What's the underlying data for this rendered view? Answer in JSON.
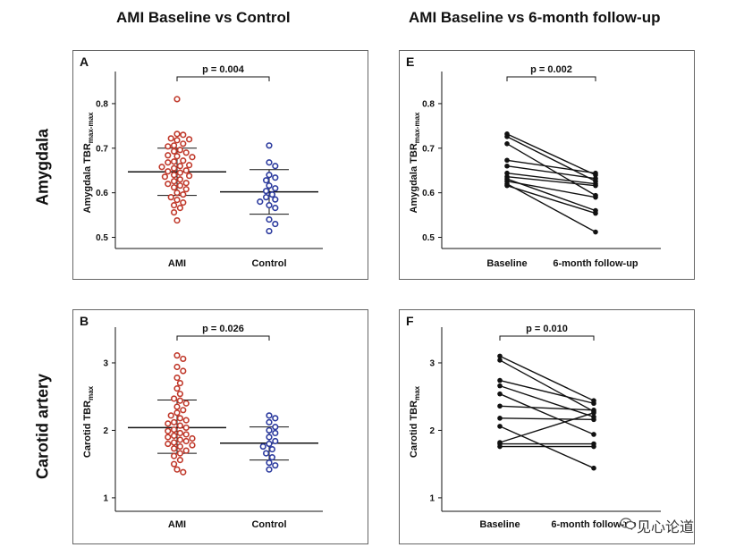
{
  "titles": {
    "col_left": "AMI  Baseline vs Control",
    "col_right": "AMI Baseline vs 6-month follow-up",
    "row_top": "Amygdala",
    "row_bottom": "Carotid artery"
  },
  "watermark": {
    "text": "见心论道",
    "icon": "wechat-icon"
  },
  "colors": {
    "ami": "#c0392b",
    "control": "#2b3a9e",
    "line": "#111111",
    "frame": "#666666"
  },
  "chart_data": [
    {
      "id": "A",
      "type": "scatter",
      "letter": "A",
      "ylabel_main": "Amygdala TBR",
      "ylabel_sub": "max-max",
      "ylim": [
        0.475,
        0.86
      ],
      "yticks": [
        0.5,
        0.6,
        0.7,
        0.8
      ],
      "yticklabels": [
        "0.5",
        "0.6",
        "0.7",
        "0.8"
      ],
      "categories": [
        "AMI",
        "Control"
      ],
      "p_value": "p = 0.004",
      "series": [
        {
          "category": "AMI",
          "color": "#c0392b",
          "mean": 0.647,
          "sd_upper": 0.7,
          "sd_lower": 0.594,
          "values": [
            0.81,
            0.732,
            0.73,
            0.72,
            0.722,
            0.718,
            0.71,
            0.706,
            0.704,
            0.696,
            0.693,
            0.69,
            0.684,
            0.682,
            0.68,
            0.672,
            0.67,
            0.668,
            0.662,
            0.66,
            0.658,
            0.655,
            0.65,
            0.648,
            0.645,
            0.64,
            0.638,
            0.636,
            0.63,
            0.626,
            0.622,
            0.62,
            0.616,
            0.612,
            0.608,
            0.6,
            0.596,
            0.59,
            0.584,
            0.578,
            0.572,
            0.566,
            0.556,
            0.538
          ]
        },
        {
          "category": "Control",
          "color": "#2b3a9e",
          "mean": 0.602,
          "sd_upper": 0.652,
          "sd_lower": 0.552,
          "values": [
            0.706,
            0.668,
            0.66,
            0.64,
            0.634,
            0.628,
            0.616,
            0.61,
            0.604,
            0.596,
            0.59,
            0.585,
            0.58,
            0.572,
            0.566,
            0.54,
            0.53,
            0.514
          ]
        }
      ]
    },
    {
      "id": "E",
      "type": "line",
      "letter": "E",
      "ylabel_main": "Amygdala TBR",
      "ylabel_sub": "max-max",
      "ylim": [
        0.475,
        0.86
      ],
      "yticks": [
        0.5,
        0.6,
        0.7,
        0.8
      ],
      "yticklabels": [
        "0.5",
        "0.6",
        "0.7",
        "0.8"
      ],
      "categories": [
        "Baseline",
        "6-month follow-up"
      ],
      "p_value": "p = 0.002",
      "pairs": [
        [
          0.732,
          0.64
        ],
        [
          0.726,
          0.626
        ],
        [
          0.71,
          0.594
        ],
        [
          0.673,
          0.644
        ],
        [
          0.66,
          0.632
        ],
        [
          0.644,
          0.62
        ],
        [
          0.636,
          0.616
        ],
        [
          0.631,
          0.56
        ],
        [
          0.626,
          0.59
        ],
        [
          0.62,
          0.512
        ],
        [
          0.616,
          0.554
        ]
      ]
    },
    {
      "id": "B",
      "type": "scatter",
      "letter": "B",
      "ylabel_main": "Carotid TBR",
      "ylabel_sub": "max",
      "ylim": [
        0.8,
        3.45
      ],
      "yticks": [
        1,
        2,
        3
      ],
      "yticklabels": [
        "1",
        "2",
        "3"
      ],
      "categories": [
        "AMI",
        "Control"
      ],
      "p_value": "p = 0.026",
      "series": [
        {
          "category": "AMI",
          "color": "#c0392b",
          "mean": 2.04,
          "sd_upper": 2.45,
          "sd_lower": 1.66,
          "values": [
            3.11,
            3.06,
            2.94,
            2.88,
            2.78,
            2.7,
            2.62,
            2.54,
            2.47,
            2.44,
            2.4,
            2.35,
            2.3,
            2.26,
            2.22,
            2.18,
            2.15,
            2.12,
            2.1,
            2.07,
            2.04,
            2.01,
            1.99,
            1.96,
            1.94,
            1.92,
            1.9,
            1.88,
            1.86,
            1.84,
            1.82,
            1.8,
            1.78,
            1.76,
            1.73,
            1.7,
            1.66,
            1.62,
            1.56,
            1.5,
            1.42,
            1.38
          ]
        },
        {
          "category": "Control",
          "color": "#2b3a9e",
          "mean": 1.81,
          "sd_upper": 2.05,
          "sd_lower": 1.56,
          "values": [
            2.22,
            2.18,
            2.12,
            2.05,
            2.0,
            1.96,
            1.9,
            1.84,
            1.8,
            1.76,
            1.72,
            1.66,
            1.6,
            1.52,
            1.48,
            1.42
          ]
        }
      ]
    },
    {
      "id": "F",
      "type": "line",
      "letter": "F",
      "ylabel_main": "Carotid TBR",
      "ylabel_sub": "max",
      "ylim": [
        0.8,
        3.45
      ],
      "yticks": [
        1,
        2,
        3
      ],
      "yticklabels": [
        "1",
        "2",
        "3"
      ],
      "categories": [
        "Baseline",
        "6-month follow-up"
      ],
      "p_value": "p = 0.010",
      "pairs": [
        [
          3.1,
          2.44
        ],
        [
          3.04,
          2.28
        ],
        [
          2.74,
          2.4
        ],
        [
          2.66,
          2.2
        ],
        [
          2.54,
          1.94
        ],
        [
          2.36,
          2.3
        ],
        [
          2.18,
          2.16
        ],
        [
          2.06,
          1.44
        ],
        [
          1.82,
          2.26
        ],
        [
          1.8,
          1.8
        ],
        [
          1.76,
          1.76
        ]
      ]
    }
  ]
}
